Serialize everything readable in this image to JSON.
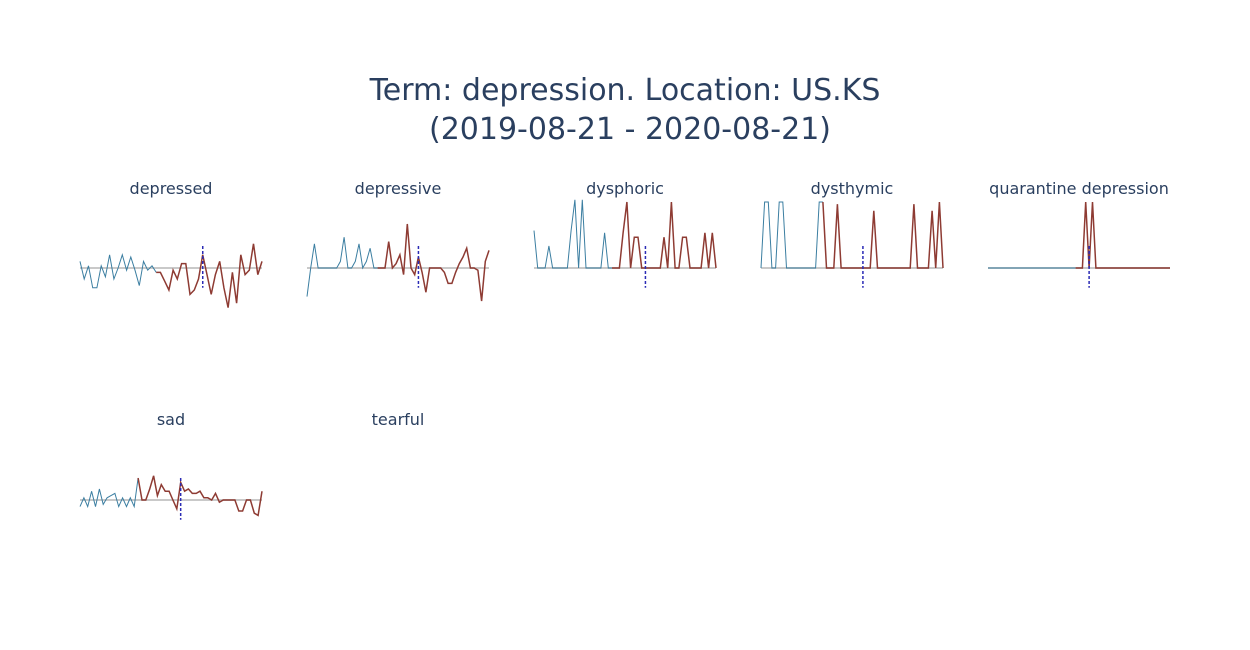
{
  "title_line1": "Term: depression. Location: US.KS",
  "title_line2": "(2019-08-21 - 2020-08-21)",
  "colors": {
    "before": "#3b7ea1",
    "after": "#8e3b33",
    "baseline": "#c9c9c9",
    "marker": "#2b2bb5",
    "title": "#2a3f5f"
  },
  "chart_data": [
    {
      "type": "line",
      "title": "depressed",
      "before": [
        0.3,
        -0.5,
        0.1,
        -0.9,
        -0.9,
        0.1,
        -0.4,
        0.6,
        -0.5,
        0.0,
        0.6,
        -0.1,
        0.5,
        -0.1,
        -0.8,
        0.3,
        -0.1,
        0.1,
        -0.2
      ],
      "after": [
        -0.2,
        -0.6,
        -1.0,
        -0.1,
        -0.5,
        0.2,
        0.2,
        -1.2,
        -1.0,
        -0.5,
        0.6,
        -0.3,
        -1.2,
        -0.3,
        0.3,
        -0.9,
        -1.8,
        -0.2,
        -1.6,
        0.6,
        -0.3,
        -0.1,
        1.1,
        -0.3,
        0.3
      ],
      "marker_index": 29,
      "ylim": [
        -3,
        3
      ]
    },
    {
      "type": "line",
      "title": "depressive",
      "before": [
        -1.3,
        0.0,
        1.1,
        0.0,
        0.0,
        0.0,
        0.0,
        0.0,
        0.0,
        0.3,
        1.4,
        0.0,
        0.0,
        0.3,
        1.1,
        0.0,
        0.3,
        0.9,
        0.0,
        0.0
      ],
      "after": [
        0.0,
        0.0,
        1.2,
        0.0,
        0.2,
        0.6,
        -0.3,
        2.0,
        0.0,
        -0.3,
        0.5,
        -0.2,
        -1.1,
        0.0,
        0.0,
        0.0,
        0.0,
        -0.2,
        -0.7,
        -0.7,
        -0.2,
        0.2,
        0.5,
        0.9,
        0.0,
        0.0,
        -0.1,
        -1.5,
        0.3,
        0.8
      ],
      "marker_index": 30,
      "ylim": [
        -3,
        3
      ]
    },
    {
      "type": "line",
      "title": "dysphoric",
      "before": [
        1.7,
        0.0,
        0.0,
        0.0,
        1.0,
        0.0,
        0.0,
        0.0,
        0.0,
        0.0,
        1.7,
        3.1,
        0.0,
        3.1,
        0.0,
        0.0,
        0.0,
        0.0,
        0.0,
        1.6,
        0.0,
        0.0
      ],
      "after": [
        0.0,
        0.0,
        1.6,
        3.0,
        0.0,
        1.4,
        1.4,
        0.0,
        0.0,
        0.0,
        0.0,
        0.0,
        0.0,
        1.4,
        0.0,
        3.0,
        0.0,
        0.0,
        1.4,
        1.4,
        0.0,
        0.0,
        0.0,
        0.0,
        1.6,
        0.0,
        1.6,
        0.0
      ],
      "marker_index": 30,
      "ylim": [
        -3,
        3
      ]
    },
    {
      "type": "line",
      "title": "dysthymic",
      "before": [
        0.0,
        3.0,
        3.0,
        0.0,
        0.0,
        3.0,
        3.0,
        0.0,
        0.0,
        0.0,
        0.0,
        0.0,
        0.0,
        0.0,
        0.0,
        0.0,
        3.0,
        3.0
      ],
      "after": [
        0.0,
        0.0,
        0.0,
        2.9,
        0.0,
        0.0,
        0.0,
        0.0,
        0.0,
        0.0,
        0.0,
        0.0,
        0.0,
        2.6,
        0.0,
        0.0,
        0.0,
        0.0,
        0.0,
        0.0,
        0.0,
        0.0,
        0.0,
        0.0,
        2.9,
        0.0,
        0.0,
        0.0,
        0.0,
        2.6,
        0.0,
        3.0,
        0.0
      ],
      "marker_index": 28,
      "ylim": [
        -3,
        3
      ]
    },
    {
      "type": "line",
      "title": "quarantine depression",
      "before": [
        0.0,
        0.0,
        0.0,
        0.0,
        0.0,
        0.0,
        0.0,
        0.0,
        0.0,
        0.0,
        0.0,
        0.0,
        0.0,
        0.0,
        0.0,
        0.0,
        0.0,
        0.0,
        0.0,
        0.0,
        0.0,
        0.0,
        0.0,
        0.0,
        0.0,
        0.0,
        0.0
      ],
      "after": [
        0.0,
        0.0,
        3.0,
        0.0,
        3.0,
        0.0,
        0.0,
        0.0,
        0.0,
        0.0,
        0.0,
        0.0,
        0.0,
        0.0,
        0.0,
        0.0,
        0.0,
        0.0,
        0.0,
        0.0,
        0.0,
        0.0,
        0.0,
        0.0,
        0.0,
        0.0,
        0.0,
        0.0
      ],
      "marker_index": 30,
      "ylim": [
        -3,
        3
      ]
    },
    {
      "type": "line",
      "title": "sad",
      "before": [
        -0.3,
        0.1,
        -0.3,
        0.4,
        -0.3,
        0.5,
        -0.2,
        0.1,
        0.2,
        0.3,
        -0.3,
        0.1,
        -0.3,
        0.1,
        -0.3,
        1.0
      ],
      "after": [
        0.0,
        0.0,
        0.5,
        1.1,
        0.2,
        0.7,
        0.4,
        0.4,
        0.0,
        -0.4,
        0.8,
        0.4,
        0.5,
        0.3,
        0.3,
        0.4,
        0.1,
        0.1,
        0.0,
        0.3,
        -0.1,
        0.0,
        0.0,
        0.0,
        0.0,
        -0.5,
        -0.5,
        0.0,
        0.0,
        -0.6,
        -0.7,
        0.4
      ],
      "marker_index": 26,
      "ylim": [
        -3,
        3
      ]
    },
    {
      "type": "line",
      "title": "tearful",
      "before": [],
      "after": [],
      "marker_index": null,
      "ylim": [
        -3,
        3
      ]
    }
  ]
}
